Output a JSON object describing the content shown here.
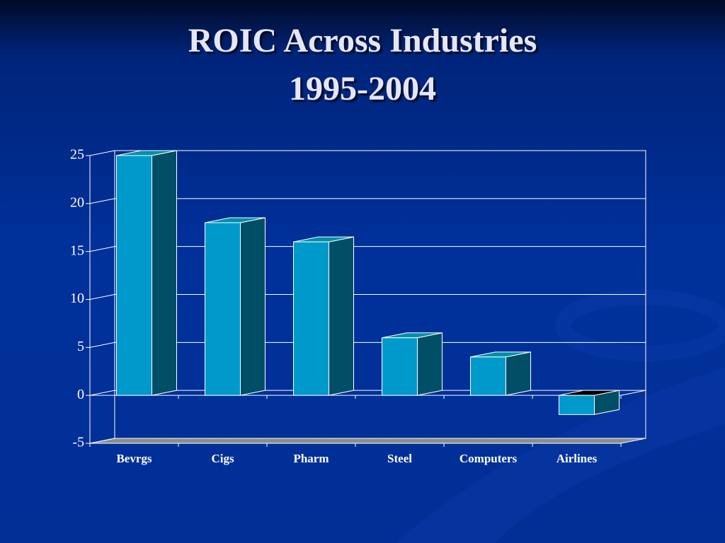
{
  "chart_data": {
    "type": "bar",
    "title": "ROIC Across Industries",
    "subtitle": "1995-2004",
    "categories": [
      "Bevrgs",
      "Cigs",
      "Pharm",
      "Steel",
      "Computers",
      "Airlines"
    ],
    "values": [
      25,
      18,
      16,
      6,
      4,
      -2
    ],
    "color": "#0099cc",
    "ylim": [
      -5,
      25
    ],
    "yticks": [
      -5,
      0,
      5,
      10,
      15,
      20,
      25
    ],
    "grid": true
  }
}
